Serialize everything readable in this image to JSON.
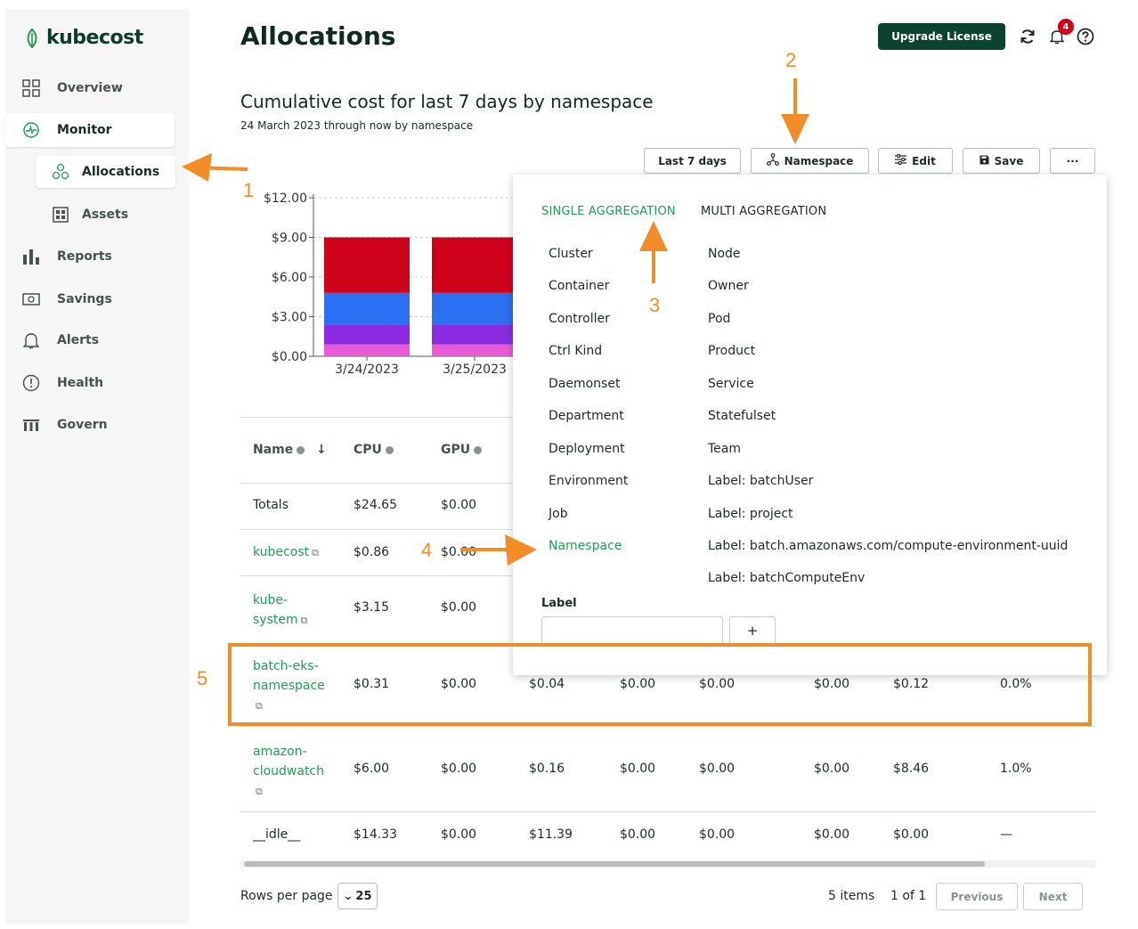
{
  "brand": {
    "name": "kubecost",
    "accent": "#1f9d55",
    "dark": "#0b4230"
  },
  "sidebar": {
    "items": [
      {
        "label": "Overview",
        "icon": "grid-icon"
      },
      {
        "label": "Monitor",
        "icon": "pulse-icon"
      },
      {
        "label": "Allocations",
        "icon": "circles-icon"
      },
      {
        "label": "Assets",
        "icon": "assets-grid-icon"
      },
      {
        "label": "Reports",
        "icon": "bar-chart-icon"
      },
      {
        "label": "Savings",
        "icon": "money-icon"
      },
      {
        "label": "Alerts",
        "icon": "bell-icon"
      },
      {
        "label": "Health",
        "icon": "alert-circle-icon"
      },
      {
        "label": "Govern",
        "icon": "govern-icon"
      }
    ]
  },
  "header": {
    "title": "Allocations",
    "upgrade_label": "Upgrade License",
    "notification_count": "4"
  },
  "report": {
    "title": "Cumulative cost for last 7 days by namespace",
    "caption": "24 March 2023 through now by namespace"
  },
  "toolbar": {
    "range_label": "Last 7 days",
    "aggregate_label": "Namespace",
    "edit_label": "Edit",
    "save_label": "Save",
    "more_label": "···"
  },
  "chart_data": {
    "type": "bar",
    "categories": [
      "3/24/2023",
      "3/25/2023"
    ],
    "yticks": [
      "$12.00",
      "$9.00",
      "$6.00",
      "$3.00",
      "$0.00"
    ],
    "ylim": [
      0,
      12
    ],
    "series": [
      {
        "values": [
          0.9,
          0.9
        ],
        "color": "#e85ad6"
      },
      {
        "values": [
          1.5,
          1.5
        ],
        "color": "#8a2be2"
      },
      {
        "values": [
          2.4,
          2.4
        ],
        "color": "#2b6ff2"
      },
      {
        "values": [
          4.2,
          4.2
        ],
        "color": "#d0021b"
      }
    ],
    "grid": true
  },
  "table": {
    "columns": [
      "Name",
      "CPU",
      "GPU"
    ],
    "totals": {
      "name": "Totals",
      "cpu": "$24.65",
      "gpu": "$0.00"
    },
    "rows": [
      {
        "name": "kubecost",
        "cpu": "$0.86",
        "gpu": "$0.00"
      },
      {
        "name_1": "kube-",
        "name_2": "system",
        "cpu": "$3.15",
        "gpu": "$0.00"
      },
      {
        "name_1": "batch-eks-",
        "name_2": "namespace",
        "cpu": "$0.31",
        "gpu": "$0.00",
        "c3": "$0.04",
        "c4": "$0.00",
        "c5": "$0.00",
        "c6": "$0.00",
        "c7": "$0.12",
        "c8": "0.0%"
      },
      {
        "name_1": "amazon-",
        "name_2": "cloudwatch",
        "cpu": "$6.00",
        "gpu": "$0.00",
        "c3": "$0.16",
        "c4": "$0.00",
        "c5": "$0.00",
        "c6": "$0.00",
        "c7": "$8.46",
        "c8": "1.0%"
      },
      {
        "name": "__idle__",
        "cpu": "$14.33",
        "gpu": "$0.00",
        "c3": "$11.39",
        "c4": "$0.00",
        "c5": "$0.00",
        "c6": "$0.00",
        "c7": "$0.00",
        "c8": "—"
      }
    ]
  },
  "footer": {
    "rows_label": "Rows per page",
    "rows_value": "25",
    "items_count": "5 items",
    "page_count": "1 of 1",
    "previous": "Previous",
    "next": "Next"
  },
  "aggregation": {
    "tab_single": "SINGLE AGGREGATION",
    "tab_multi": "MULTI AGGREGATION",
    "single": [
      "Cluster",
      "Container",
      "Controller",
      "Ctrl Kind",
      "Daemonset",
      "Department",
      "Deployment",
      "Environment",
      "Job",
      "Namespace"
    ],
    "multi": [
      "Node",
      "Owner",
      "Pod",
      "Product",
      "Service",
      "Statefulset",
      "Team",
      "Label: batchUser",
      "Label: project",
      "Label: batch.amazonaws.com/compute-environment-uuid",
      "Label: batchComputeEnv"
    ],
    "label_title": "Label",
    "add_label": "+"
  },
  "annotations": [
    "1",
    "2",
    "3",
    "4",
    "5"
  ]
}
